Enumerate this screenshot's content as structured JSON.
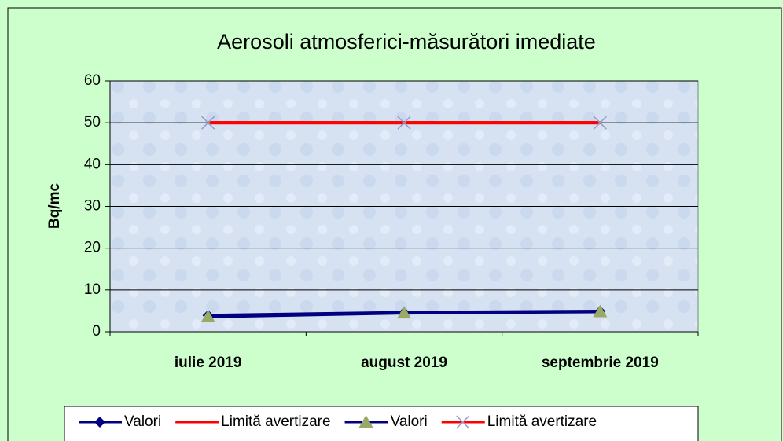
{
  "chart_data": {
    "type": "line",
    "title": "Aerosoli atmosferici-măsurători imediate",
    "y_label": "Bq/mc",
    "categories": [
      "iulie 2019",
      "august 2019",
      "septembrie 2019"
    ],
    "series": [
      {
        "name": "Valori",
        "color": "#000080",
        "marker": "diamond",
        "marker_color": "#000080",
        "values": [
          3.9,
          4.6,
          4.9
        ]
      },
      {
        "name": "Limită avertizare",
        "color": "#ff0000",
        "marker": "none",
        "marker_color": "#ff0000",
        "values": [
          50,
          50,
          50
        ]
      },
      {
        "name": "Valori",
        "color": "#000080",
        "marker": "triangle",
        "marker_color": "#99aa66",
        "values": [
          3.6,
          4.5,
          4.8
        ]
      },
      {
        "name": "Limită avertizare",
        "color": "#ff0000",
        "marker": "x",
        "marker_color": "#9999cc",
        "values": [
          50,
          50,
          50
        ]
      }
    ],
    "ylim": [
      0,
      60
    ],
    "yticks": [
      0,
      10,
      20,
      30,
      40,
      50,
      60
    ],
    "grid": true
  }
}
